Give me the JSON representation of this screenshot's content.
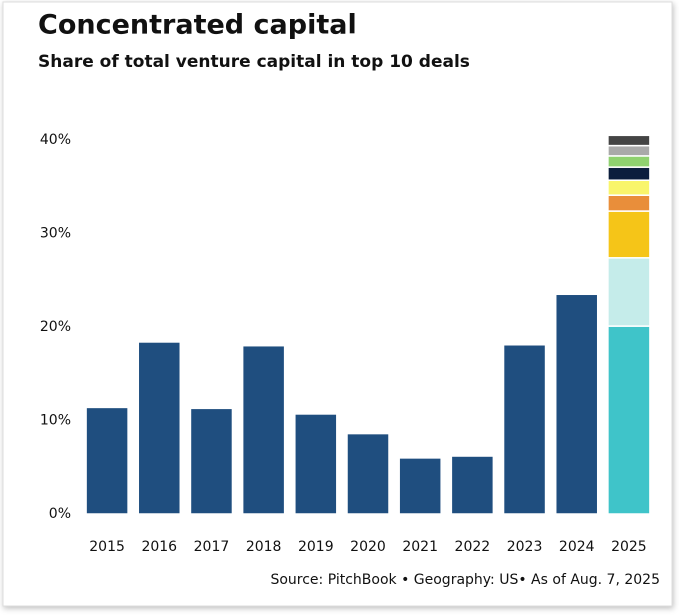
{
  "chart_data": {
    "type": "stacked_bar",
    "title": "Concentrated capital",
    "subtitle": "Share of total venture capital in top 10 deals",
    "source": "Source: PitchBook • Geography: US• As of Aug. 7, 2025",
    "categories": [
      "2015",
      "2016",
      "2017",
      "2018",
      "2019",
      "2020",
      "2021",
      "2022",
      "2023",
      "2024",
      "2025"
    ],
    "series": [
      {
        "color": "#1f4e7f",
        "values": [
          11.4,
          18.4,
          11.3,
          18.0,
          10.7,
          8.6,
          6.0,
          6.2,
          18.1,
          23.5,
          null
        ]
      },
      {
        "color": "#3fc4c9",
        "values": [
          null,
          null,
          null,
          null,
          null,
          null,
          null,
          null,
          null,
          null,
          20.1
        ]
      },
      {
        "color": "#c5ecea",
        "values": [
          null,
          null,
          null,
          null,
          null,
          null,
          null,
          null,
          null,
          null,
          7.3
        ]
      },
      {
        "color": "#f5c518",
        "values": [
          null,
          null,
          null,
          null,
          null,
          null,
          null,
          null,
          null,
          null,
          5.0
        ]
      },
      {
        "color": "#e98e3a",
        "values": [
          null,
          null,
          null,
          null,
          null,
          null,
          null,
          null,
          null,
          null,
          1.7
        ]
      },
      {
        "color": "#f9f56b",
        "values": [
          null,
          null,
          null,
          null,
          null,
          null,
          null,
          null,
          null,
          null,
          1.6
        ]
      },
      {
        "color": "#0b1d3d",
        "values": [
          null,
          null,
          null,
          null,
          null,
          null,
          null,
          null,
          null,
          null,
          1.4
        ]
      },
      {
        "color": "#8fd16f",
        "values": [
          null,
          null,
          null,
          null,
          null,
          null,
          null,
          null,
          null,
          null,
          1.2
        ]
      },
      {
        "color": "#a9a9a9",
        "values": [
          null,
          null,
          null,
          null,
          null,
          null,
          null,
          null,
          null,
          null,
          1.1
        ]
      },
      {
        "color": "#444444",
        "values": [
          null,
          null,
          null,
          null,
          null,
          null,
          null,
          null,
          null,
          null,
          1.1
        ]
      }
    ],
    "ylim": [
      0,
      42
    ],
    "yticks": [
      {
        "value": 0,
        "label": "0%"
      },
      {
        "value": 10,
        "label": "10%"
      },
      {
        "value": 20,
        "label": "20%"
      },
      {
        "value": 30,
        "label": "30%"
      },
      {
        "value": 40,
        "label": "40%"
      }
    ]
  }
}
